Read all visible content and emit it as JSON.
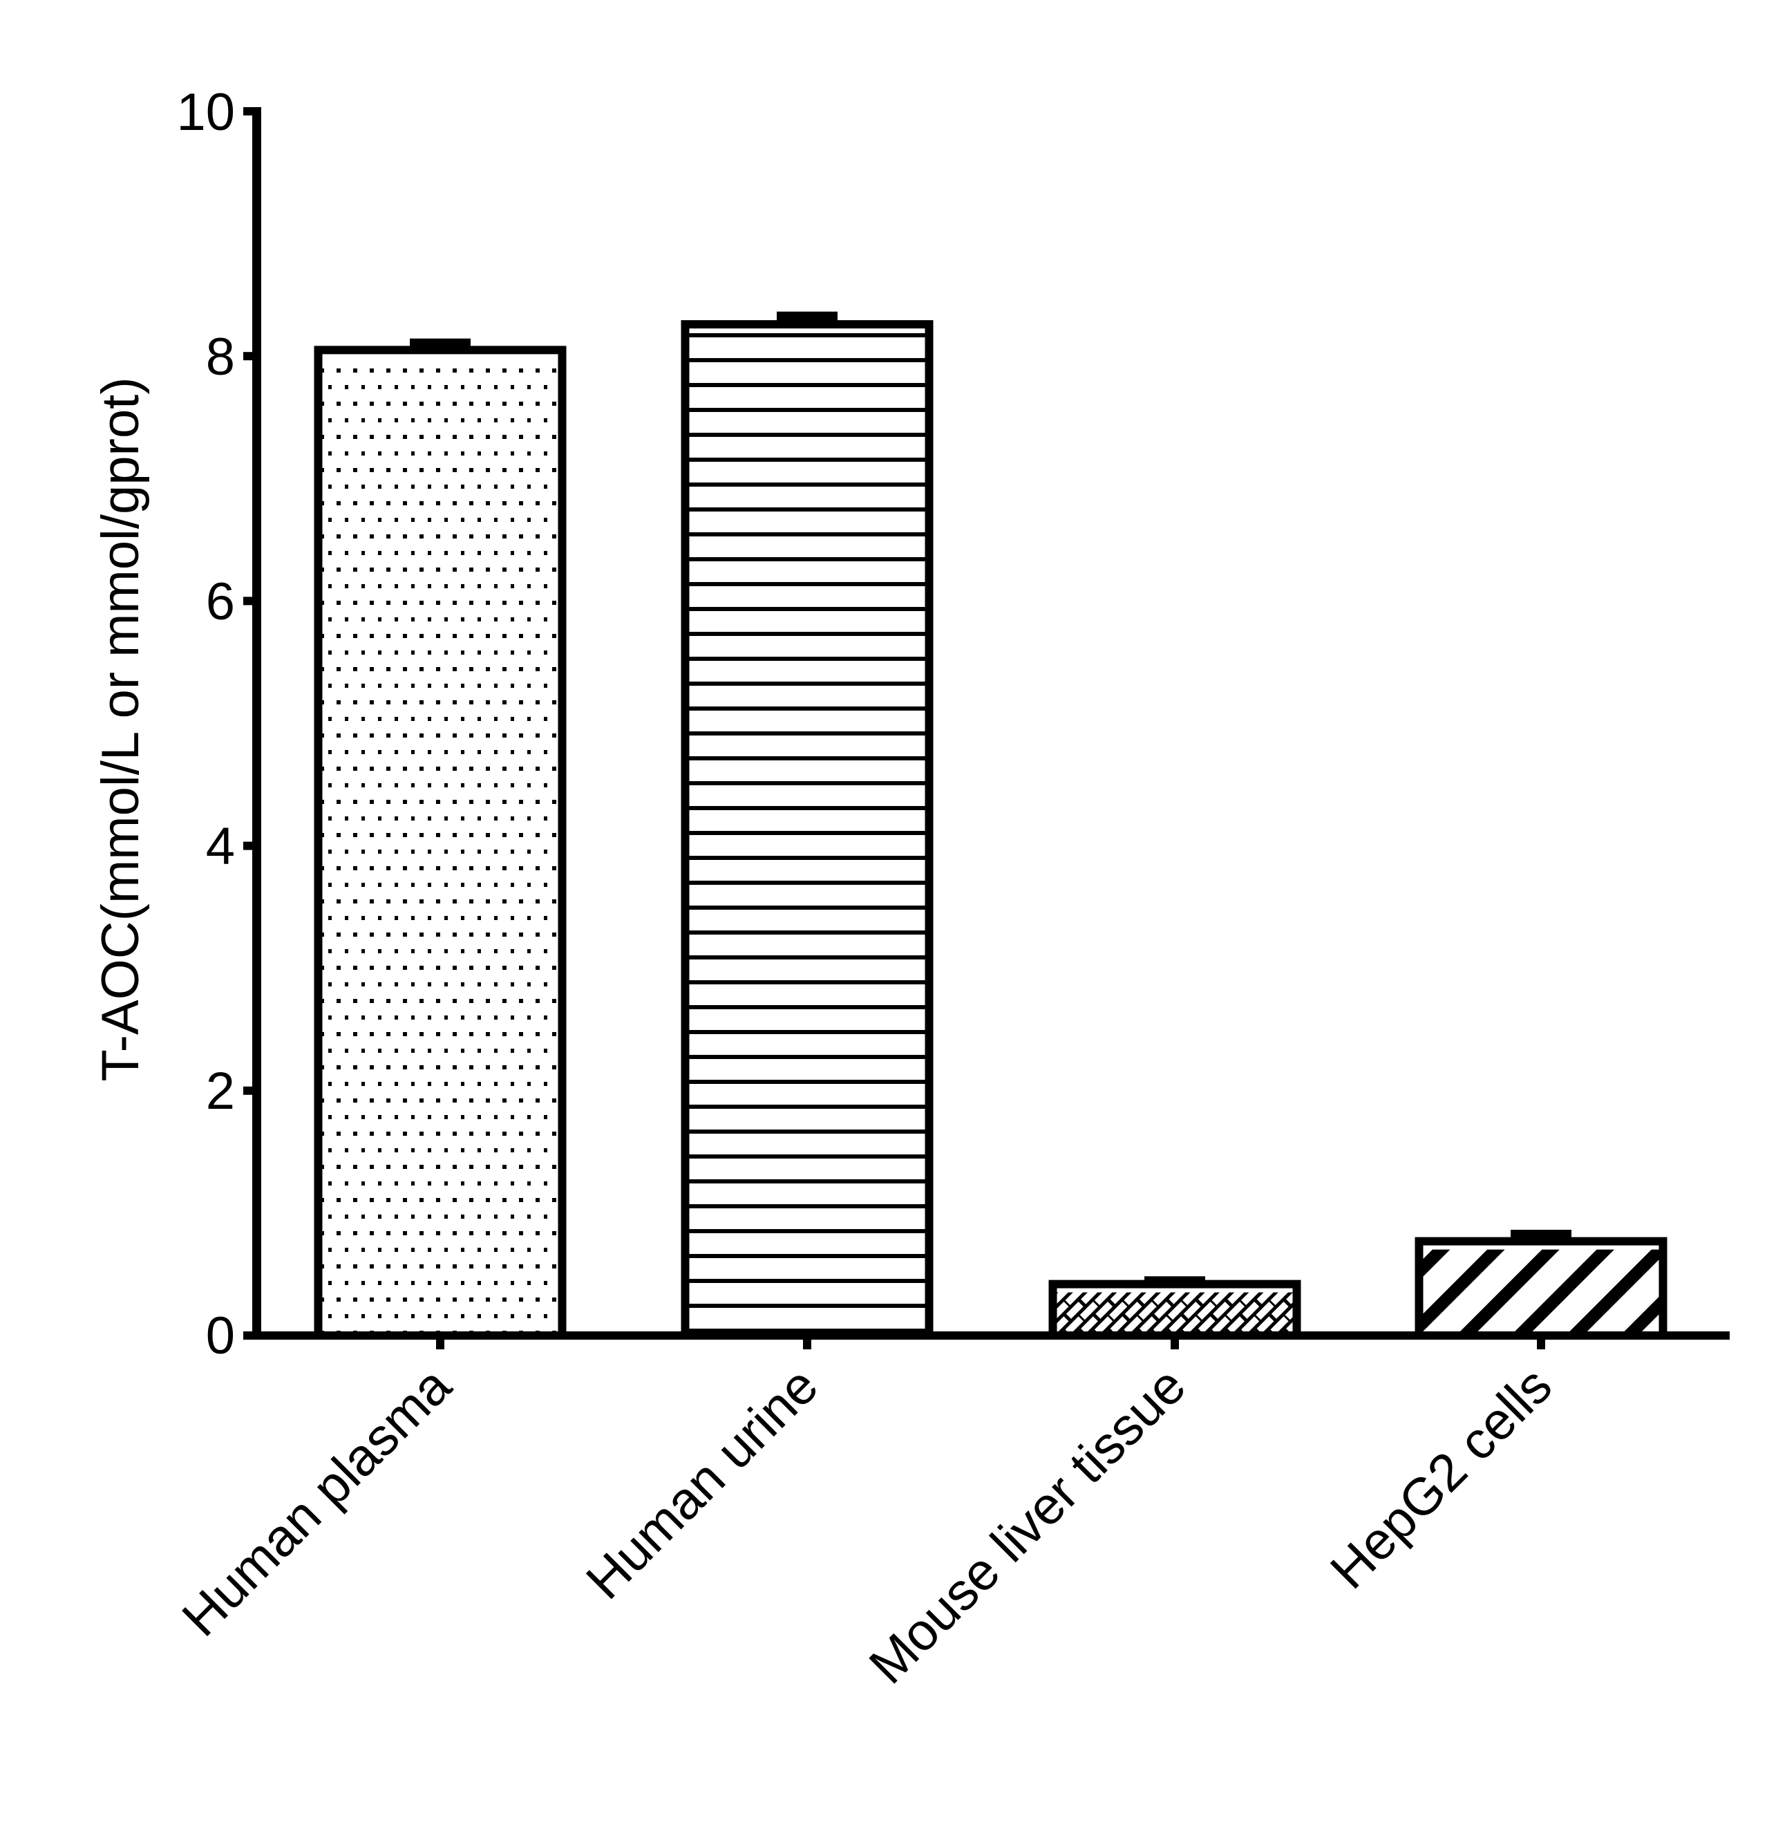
{
  "chart_data": {
    "type": "bar",
    "title": "",
    "xlabel": "",
    "ylabel": "T-AOC(mmol/L or mmol/gprot)",
    "ylim": [
      0,
      10
    ],
    "yticks": [
      "0",
      "2",
      "4",
      "6",
      "8",
      "10"
    ],
    "grid": false,
    "legend": null,
    "categories": [
      "Human plasma",
      "Human urine",
      "Mouse liver tissue",
      "HepG2 cells"
    ],
    "values": [
      8.05,
      8.26,
      0.42,
      0.77
    ],
    "error": [
      0.06,
      0.07,
      0.03,
      0.06
    ],
    "patterns": [
      "dots",
      "horizontal-lines",
      "brick-hatch",
      "diagonal-stripes"
    ],
    "colors": {
      "stroke": "#000000",
      "fill": "#ffffff"
    }
  }
}
